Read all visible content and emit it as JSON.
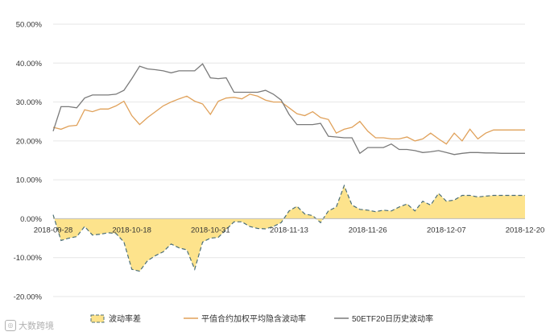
{
  "chart_data": {
    "type": "line",
    "y_ticks": [
      "50.00%",
      "40.00%",
      "30.00%",
      "20.00%",
      "10.00%",
      "0.00%",
      "-10.00%",
      "-20.00%"
    ],
    "ylim": [
      -20,
      50
    ],
    "x_ticks": [
      {
        "label": "2018-09-28",
        "index": 0
      },
      {
        "label": "2018-10-18",
        "index": 10
      },
      {
        "label": "2018-10-31",
        "index": 20
      },
      {
        "label": "2018-11-13",
        "index": 30
      },
      {
        "label": "2018-11-26",
        "index": 40
      },
      {
        "label": "2018-12-07",
        "index": 50
      },
      {
        "label": "2018-12-20",
        "index": 60
      }
    ],
    "series": [
      {
        "name": "波动率差",
        "kind": "area",
        "color": "#fde38c",
        "line_color": "#4a6e78",
        "values": [
          1.0,
          -5.6,
          -5.0,
          -4.6,
          -2.0,
          -4.2,
          -4.0,
          -3.6,
          -3.8,
          -6.0,
          -13.0,
          -13.5,
          -10.8,
          -9.5,
          -8.5,
          -6.5,
          -7.5,
          -8.0,
          -13.0,
          -6.0,
          -5.0,
          -4.8,
          -2.8,
          -0.8,
          -0.8,
          -2.0,
          -2.5,
          -2.6,
          -2.0,
          -1.0,
          2.0,
          3.2,
          1.2,
          0.8,
          -1.0,
          2.0,
          3.0,
          8.5,
          3.5,
          2.4,
          2.2,
          1.8,
          2.2,
          2.0,
          3.0,
          3.8,
          2.0,
          4.5,
          3.5,
          6.5,
          4.5,
          4.8,
          6.0,
          6.0,
          5.6,
          5.8,
          6.0,
          6.0,
          6.0,
          6.0,
          6.0
        ]
      },
      {
        "name": "平值合约加权平均隐含波动率",
        "kind": "line",
        "color": "#e0a15a",
        "values": [
          23.5,
          23.0,
          23.8,
          24.0,
          28.0,
          27.5,
          28.2,
          28.2,
          29.0,
          30.2,
          26.5,
          24.2,
          26.0,
          27.5,
          29.0,
          30.0,
          30.8,
          31.5,
          30.2,
          29.5,
          26.8,
          30.2,
          31.0,
          31.2,
          30.8,
          32.0,
          31.5,
          30.5,
          30.0,
          30.0,
          28.5,
          27.0,
          26.5,
          27.5,
          26.0,
          25.5,
          22.0,
          23.0,
          23.5,
          25.0,
          22.5,
          20.8,
          20.8,
          20.5,
          20.5,
          21.0,
          20.0,
          20.5,
          22.0,
          20.5,
          19.2,
          22.0,
          20.0,
          23.0,
          20.5,
          22.0,
          22.8,
          22.8,
          22.8,
          22.8,
          22.8
        ]
      },
      {
        "name": "50ETF20日历史波动率",
        "kind": "line",
        "color": "#7a7a7a",
        "values": [
          22.5,
          28.8,
          28.8,
          28.5,
          31.0,
          31.8,
          31.8,
          31.8,
          32.0,
          33.0,
          36.0,
          39.2,
          38.5,
          38.3,
          38.0,
          37.5,
          38.0,
          38.0,
          38.0,
          39.8,
          36.2,
          36.0,
          36.2,
          32.5,
          32.5,
          32.5,
          32.5,
          33.0,
          32.0,
          30.5,
          26.8,
          24.2,
          24.2,
          24.2,
          24.5,
          21.2,
          21.0,
          20.8,
          20.8,
          16.8,
          18.3,
          18.3,
          18.3,
          19.2,
          17.8,
          17.8,
          17.5,
          17.0,
          17.2,
          17.5,
          17.0,
          16.5,
          16.8,
          17.0,
          17.0,
          16.9,
          16.9,
          16.8,
          16.8,
          16.8,
          16.8
        ]
      }
    ],
    "legend": {
      "position": "bottom"
    }
  },
  "watermark": {
    "text": "大数跨境",
    "icon": "logo-icon"
  }
}
